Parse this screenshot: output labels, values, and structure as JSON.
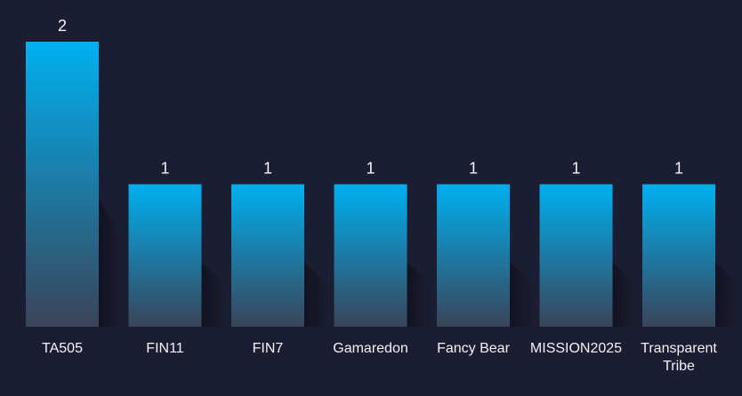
{
  "chart_data": {
    "type": "bar",
    "categories": [
      "TA505",
      "FIN11",
      "FIN7",
      "Gamaredon",
      "Fancy Bear",
      "MISSION2025",
      "Transparent Tribe"
    ],
    "values": [
      2,
      1,
      1,
      1,
      1,
      1,
      1
    ],
    "title": "",
    "xlabel": "",
    "ylabel": "",
    "ylim": [
      0,
      2
    ],
    "grid": false,
    "legend": "none",
    "colors": {
      "background": "#1b1d33",
      "bar_top": "#00b0f0",
      "bar_bottom": "#3a4458",
      "label": "#f2f3f7"
    }
  }
}
